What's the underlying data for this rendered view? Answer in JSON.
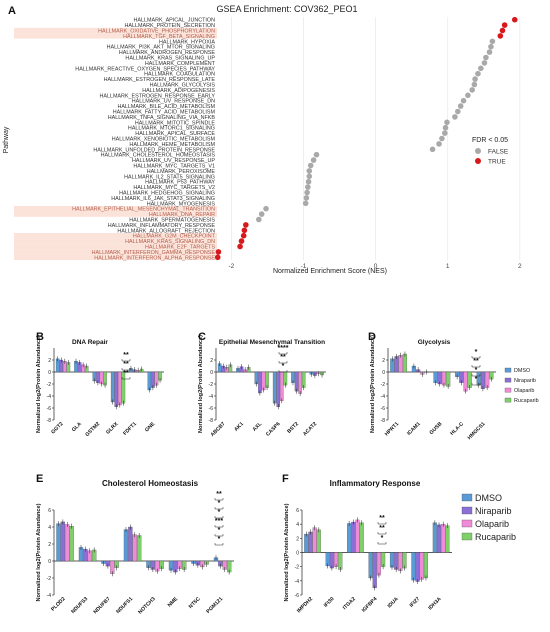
{
  "chart_data": [
    {
      "panel": "A",
      "type": "scatter",
      "title": "GSEA Enrichment: COV362_PEO1",
      "xlabel": "Normalized Enrichment Score (NES)",
      "ylabel": "Pathway",
      "xlim": [
        -2.2,
        2.1
      ],
      "xticks": [
        "-2",
        "-1",
        "0",
        "1",
        "2"
      ],
      "xtick_values": [
        -2,
        -1,
        0,
        1,
        2
      ],
      "grid": true,
      "legend_title": "FDR < 0.05",
      "legend_placement": "right",
      "legend": [
        {
          "label": "FALSE",
          "color": "#a9a9a9"
        },
        {
          "label": "TRUE",
          "color": "#d7191c"
        }
      ],
      "highlight_color": "#fbe3d9",
      "pathways": [
        {
          "name": "HALLMARK_APICAL_JUNCTION",
          "nes": 1.93,
          "fdr": true,
          "hl": false
        },
        {
          "name": "HALLMARK_PROTEIN_SECRETION",
          "nes": 1.79,
          "fdr": true,
          "hl": false
        },
        {
          "name": "HALLMARK_OXIDATIVE_PHOSPHORYLATION",
          "nes": 1.76,
          "fdr": true,
          "hl": true
        },
        {
          "name": "HALLMARK_TGF_BETA_SIGNALING",
          "nes": 1.73,
          "fdr": true,
          "hl": true
        },
        {
          "name": "HALLMARK_HYPOXIA",
          "nes": 1.62,
          "fdr": false,
          "hl": false
        },
        {
          "name": "HALLMARK_PI3K_AKT_MTOR_SIGNALING",
          "nes": 1.6,
          "fdr": false,
          "hl": false
        },
        {
          "name": "HALLMARK_ANDROGEN_RESPONSE",
          "nes": 1.58,
          "fdr": false,
          "hl": false
        },
        {
          "name": "HALLMARK_KRAS_SIGNALING_UP",
          "nes": 1.53,
          "fdr": false,
          "hl": false
        },
        {
          "name": "HALLMARK_COMPLEMENT",
          "nes": 1.51,
          "fdr": false,
          "hl": false
        },
        {
          "name": "HALLMARK_REACTIVE_OXYGEN_SPECIES_PATHWAY",
          "nes": 1.46,
          "fdr": false,
          "hl": false
        },
        {
          "name": "HALLMARK_COAGULATION",
          "nes": 1.42,
          "fdr": false,
          "hl": false
        },
        {
          "name": "HALLMARK_ESTROGEN_RESPONSE_LATE",
          "nes": 1.38,
          "fdr": false,
          "hl": false
        },
        {
          "name": "HALLMARK_GLYCOLYSIS",
          "nes": 1.37,
          "fdr": false,
          "hl": false
        },
        {
          "name": "HALLMARK_ADIPOGENESIS",
          "nes": 1.34,
          "fdr": false,
          "hl": false
        },
        {
          "name": "HALLMARK_ESTROGEN_RESPONSE_EARLY",
          "nes": 1.28,
          "fdr": false,
          "hl": false
        },
        {
          "name": "HALLMARK_UV_RESPONSE_DN",
          "nes": 1.22,
          "fdr": false,
          "hl": false
        },
        {
          "name": "HALLMARK_BILE_ACID_METABOLISM",
          "nes": 1.18,
          "fdr": false,
          "hl": false
        },
        {
          "name": "HALLMARK_FATTY_ACID_METABOLISM",
          "nes": 1.14,
          "fdr": false,
          "hl": false
        },
        {
          "name": "HALLMARK_TNFA_SIGNALING_VIA_NFKB",
          "nes": 1.1,
          "fdr": false,
          "hl": false
        },
        {
          "name": "HALLMARK_MITOTIC_SPINDLE",
          "nes": 0.99,
          "fdr": false,
          "hl": false
        },
        {
          "name": "HALLMARK_MTORC1_SIGNALING",
          "nes": 0.97,
          "fdr": false,
          "hl": false
        },
        {
          "name": "HALLMARK_APICAL_SURFACE",
          "nes": 0.96,
          "fdr": false,
          "hl": false
        },
        {
          "name": "HALLMARK_XENOBIOTIC_METABOLISM",
          "nes": 0.92,
          "fdr": false,
          "hl": false
        },
        {
          "name": "HALLMARK_HEME_METABOLISM",
          "nes": 0.88,
          "fdr": false,
          "hl": false
        },
        {
          "name": "HALLMARK_UNFOLDED_PROTEIN_RESPONSE",
          "nes": 0.79,
          "fdr": false,
          "hl": false
        },
        {
          "name": "HALLMARK_CHOLESTEROL_HOMEOSTASIS",
          "nes": -0.82,
          "fdr": false,
          "hl": false
        },
        {
          "name": "HALLMARK_UV_RESPONSE_UP",
          "nes": -0.86,
          "fdr": false,
          "hl": false
        },
        {
          "name": "HALLMARK_MYC_TARGETS_V1",
          "nes": -0.9,
          "fdr": false,
          "hl": false
        },
        {
          "name": "HALLMARK_PEROXISOME",
          "nes": -0.92,
          "fdr": false,
          "hl": false
        },
        {
          "name": "HALLMARK_IL2_STAT5_SIGNALING",
          "nes": -0.92,
          "fdr": false,
          "hl": false
        },
        {
          "name": "HALLMARK_P53_PATHWAY",
          "nes": -0.93,
          "fdr": false,
          "hl": false
        },
        {
          "name": "HALLMARK_MYC_TARGETS_V2",
          "nes": -0.94,
          "fdr": false,
          "hl": false
        },
        {
          "name": "HALLMARK_HEDGEHOG_SIGNALING",
          "nes": -0.95,
          "fdr": false,
          "hl": false
        },
        {
          "name": "HALLMARK_IL6_JAK_STAT3_SIGNALING",
          "nes": -0.96,
          "fdr": false,
          "hl": false
        },
        {
          "name": "HALLMARK_MYOGENESIS",
          "nes": -0.97,
          "fdr": false,
          "hl": false
        },
        {
          "name": "HALLMARK_EPITHELIAL_MESENCHYMAL_TRANSITION",
          "nes": -1.52,
          "fdr": false,
          "hl": true
        },
        {
          "name": "HALLMARK_DNA_REPAIR",
          "nes": -1.58,
          "fdr": false,
          "hl": true
        },
        {
          "name": "HALLMARK_SPERMATOGENESIS",
          "nes": -1.62,
          "fdr": false,
          "hl": false
        },
        {
          "name": "HALLMARK_INFLAMMATORY_RESPONSE",
          "nes": -1.8,
          "fdr": true,
          "hl": false
        },
        {
          "name": "HALLMARK_ALLOGRAFT_REJECTION",
          "nes": -1.82,
          "fdr": true,
          "hl": false
        },
        {
          "name": "HALLMARK_G2M_CHECKPOINT",
          "nes": -1.83,
          "fdr": true,
          "hl": true
        },
        {
          "name": "HALLMARK_KRAS_SIGNALING_DN",
          "nes": -1.86,
          "fdr": true,
          "hl": true
        },
        {
          "name": "HALLMARK_E2F_TARGETS",
          "nes": -1.88,
          "fdr": true,
          "hl": true
        },
        {
          "name": "HALLMARK_INTERFERON_GAMMA_RESPONSE",
          "nes": -2.18,
          "fdr": true,
          "hl": true
        },
        {
          "name": "HALLMARK_INTERFERON_ALPHA_RESPONSE",
          "nes": -2.19,
          "fdr": true,
          "hl": true
        }
      ]
    },
    {
      "panel": "B",
      "type": "bar",
      "title": "DNA Repair",
      "ylabel": "Normalized log2(Protein Abundance)",
      "ylim": [
        -8,
        4
      ],
      "yticks": [
        2,
        0,
        -2,
        -4,
        -6,
        -8
      ],
      "categories": [
        "GGT2",
        "GLA",
        "GSTM2",
        "GLRX",
        "FDFT1",
        "GNE"
      ],
      "series": [
        {
          "name": "DMSO",
          "values": [
            2.2,
            1.8,
            -1.5,
            -5.0,
            0.6,
            -3.0
          ]
        },
        {
          "name": "Niraparib",
          "values": [
            2.0,
            1.6,
            -1.8,
            -5.8,
            0.4,
            -2.6
          ]
        },
        {
          "name": "Olaparib",
          "values": [
            1.8,
            1.2,
            -2.0,
            -5.5,
            0.3,
            -2.2
          ]
        },
        {
          "name": "Rucaparib",
          "values": [
            1.6,
            1.0,
            -2.2,
            -5.2,
            0.5,
            -1.4
          ]
        }
      ],
      "significance": [
        "**",
        "**",
        "**"
      ]
    },
    {
      "panel": "C",
      "type": "bar",
      "title": "Epithelial Mesenchymal Transition",
      "ylabel": "Normalized log2(Protein Abundance)",
      "ylim": [
        -8,
        4
      ],
      "yticks": [
        2,
        0,
        -2,
        -4,
        -6,
        -8
      ],
      "categories": [
        "ABCB7",
        "AK1",
        "AXL",
        "CASP6",
        "BST2",
        "ACAT2"
      ],
      "series": [
        {
          "name": "DMSO",
          "values": [
            1.4,
            0.6,
            -2.0,
            -5.2,
            -1.8,
            -0.4
          ]
        },
        {
          "name": "Niraparib",
          "values": [
            1.0,
            0.9,
            -3.5,
            -5.8,
            -3.2,
            -0.6
          ]
        },
        {
          "name": "Olaparib",
          "values": [
            0.8,
            0.4,
            -3.0,
            -4.8,
            -3.6,
            -0.3
          ]
        },
        {
          "name": "Rucaparib",
          "values": [
            1.2,
            0.8,
            -2.6,
            -2.2,
            -2.6,
            -0.5
          ]
        }
      ],
      "significance": [
        "****",
        "**",
        "*"
      ]
    },
    {
      "panel": "D",
      "type": "bar",
      "title": "Glycolysis",
      "ylabel": "Normalized log2(Protein Abundance)",
      "ylim": [
        -8,
        4
      ],
      "yticks": [
        2,
        0,
        -2,
        -4,
        -6,
        -8
      ],
      "categories": [
        "HPRT1",
        "ICAM1",
        "GUSB",
        "HLA-C",
        "HMGCS1"
      ],
      "series": [
        {
          "name": "DMSO",
          "values": [
            2.2,
            1.0,
            -1.8,
            -0.8,
            -2.2
          ]
        },
        {
          "name": "Niraparib",
          "values": [
            2.6,
            0.4,
            -2.0,
            -1.8,
            -2.8
          ]
        },
        {
          "name": "Olaparib",
          "values": [
            2.8,
            -0.4,
            -2.2,
            -3.2,
            -2.6
          ]
        },
        {
          "name": "Rucaparib",
          "values": [
            3.0,
            0.0,
            -2.4,
            -2.6,
            -1.2
          ]
        }
      ],
      "significance": [
        "*",
        "**",
        "*",
        "*"
      ]
    },
    {
      "panel": "E",
      "type": "bar",
      "title": "Cholesterol Homeostasis",
      "ylabel": "Normalized log2(Protein Abundance)",
      "ylim": [
        -4,
        6
      ],
      "yticks": [
        6,
        4,
        2,
        0,
        -2,
        -4
      ],
      "categories": [
        "PLOD2",
        "NDUFS3",
        "NDUFB7",
        "NDUFS1",
        "NOTCH3",
        "NME",
        "NT5C",
        "PGM121"
      ],
      "series": [
        {
          "name": "DMSO",
          "values": [
            4.4,
            1.6,
            -0.3,
            3.7,
            -0.8,
            -1.1,
            -0.3,
            0.4
          ]
        },
        {
          "name": "Niraparib",
          "values": [
            4.6,
            1.4,
            -0.6,
            4.0,
            -1.0,
            -1.3,
            -0.5,
            -0.6
          ]
        },
        {
          "name": "Olaparib",
          "values": [
            4.3,
            1.2,
            -1.5,
            3.1,
            -1.2,
            -0.9,
            -0.7,
            -1.0
          ]
        },
        {
          "name": "Rucaparib",
          "values": [
            4.1,
            1.3,
            -0.8,
            3.0,
            -0.9,
            -1.0,
            -0.4,
            -1.3
          ]
        }
      ],
      "significance": [
        "**",
        "*",
        "*",
        "***",
        "*",
        "*"
      ]
    },
    {
      "panel": "F",
      "type": "bar",
      "title": "Inflammatory Response",
      "ylabel": "Normalized log2(Protein Abundance)",
      "ylim": [
        -6,
        6
      ],
      "yticks": [
        6,
        4,
        2,
        0,
        -2,
        -4,
        -6
      ],
      "categories": [
        "IMPDH2",
        "IFI30",
        "ITGA2",
        "IGFBP4",
        "IDUA",
        "IFI27",
        "IDH3A"
      ],
      "series": [
        {
          "name": "DMSO",
          "values": [
            2.6,
            -1.9,
            4.1,
            -3.6,
            -2.1,
            -3.9,
            4.2
          ]
        },
        {
          "name": "Niraparib",
          "values": [
            2.9,
            -2.2,
            4.3,
            -5.0,
            -2.4,
            -4.1,
            3.9
          ]
        },
        {
          "name": "Olaparib",
          "values": [
            3.5,
            -2.0,
            4.6,
            -3.2,
            -2.6,
            -3.8,
            4.0
          ]
        },
        {
          "name": "Rucaparib",
          "values": [
            3.2,
            -2.4,
            4.2,
            -2.0,
            -2.2,
            -3.6,
            3.8
          ]
        }
      ],
      "significance": [
        "**",
        "**",
        "*"
      ]
    }
  ],
  "panel_labels": [
    "A",
    "B",
    "C",
    "D",
    "E",
    "F"
  ],
  "treatments": [
    "DMSO",
    "Niraparib",
    "Olaparib",
    "Rucaparib"
  ],
  "treatment_colors": [
    "#5b9bd5",
    "#8c6fd6",
    "#f08bd8",
    "#7fcf6a"
  ]
}
